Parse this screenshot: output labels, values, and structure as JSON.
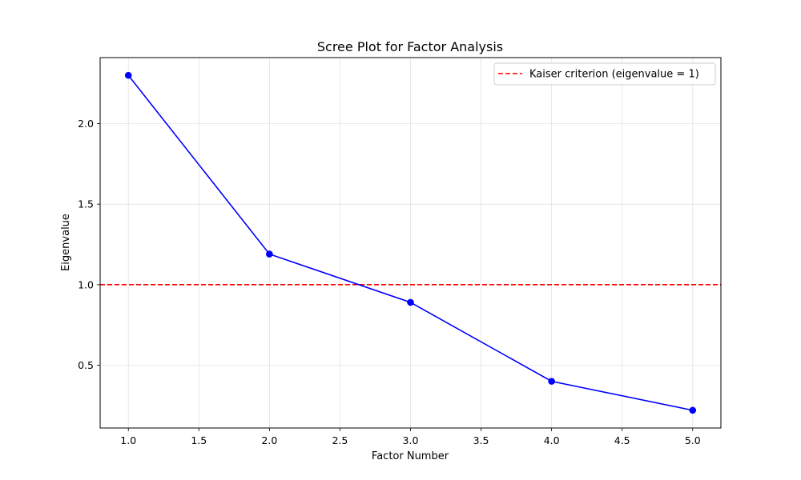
{
  "chart_data": {
    "type": "line",
    "title": "Scree Plot for Factor Analysis",
    "xlabel": "Factor Number",
    "ylabel": "Eigenvalue",
    "xlim": [
      0.8,
      5.2
    ],
    "ylim": [
      0.11,
      2.41
    ],
    "x_ticks": [
      1.0,
      1.5,
      2.0,
      2.5,
      3.0,
      3.5,
      4.0,
      4.5,
      5.0
    ],
    "x_tick_labels": [
      "1.0",
      "1.5",
      "2.0",
      "2.5",
      "3.0",
      "3.5",
      "4.0",
      "4.5",
      "5.0"
    ],
    "y_ticks": [
      0.5,
      1.0,
      1.5,
      2.0
    ],
    "y_tick_labels": [
      "0.5",
      "1.0",
      "1.5",
      "2.0"
    ],
    "grid": true,
    "legend_position": "top-right",
    "series": [
      {
        "x": [
          1,
          2,
          3,
          4,
          5
        ],
        "values": [
          2.3,
          1.19,
          0.89,
          0.4,
          0.22
        ],
        "color": "#0000ff",
        "marker": "circle"
      }
    ],
    "reference_lines": [
      {
        "name": "Kaiser criterion (eigenvalue = 1)",
        "y": 1.0,
        "color": "#ff0000",
        "style": "dashed"
      }
    ]
  }
}
